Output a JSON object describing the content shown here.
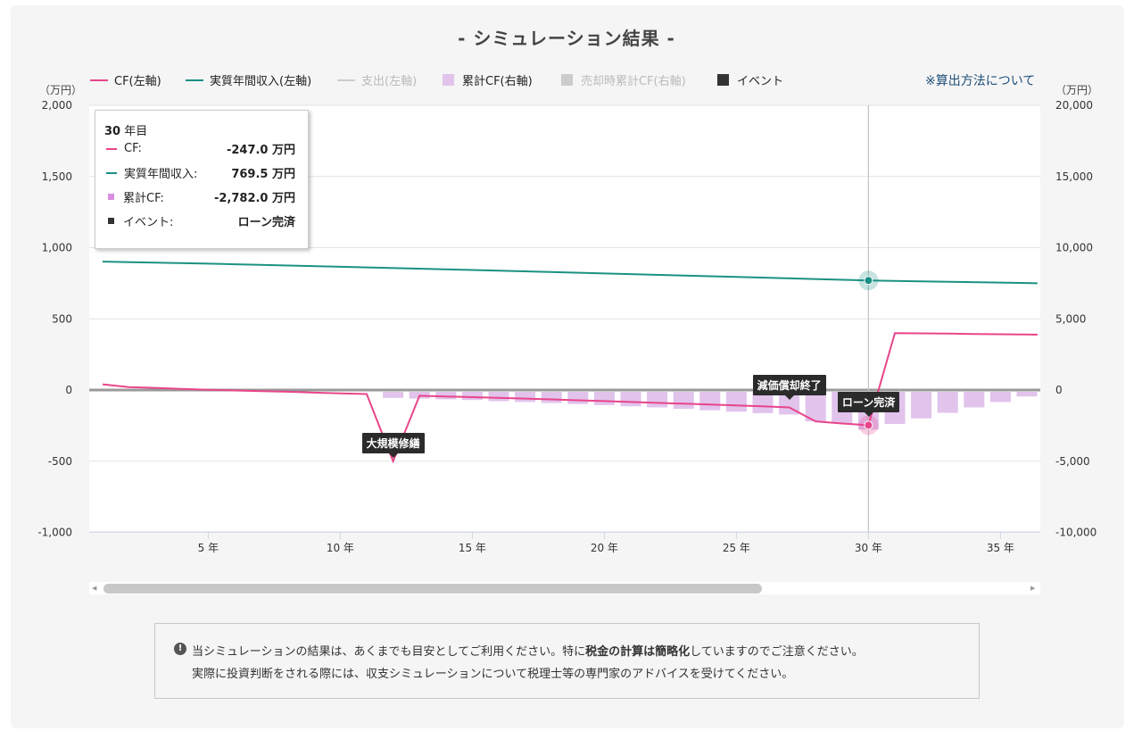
{
  "title": "- シミュレーション結果 -",
  "legend": [
    {
      "label": "CF(左軸)",
      "color": "#e8458b",
      "kind": "line",
      "active": true
    },
    {
      "label": "実質年間収入(左軸)",
      "color": "#1b9183",
      "kind": "line",
      "active": true
    },
    {
      "label": "支出(左軸)",
      "color": "#cccccc",
      "kind": "line",
      "active": false
    },
    {
      "label": "累計CF(右軸)",
      "color": "#e1c3ec",
      "kind": "box",
      "active": true
    },
    {
      "label": "売却時累計CF(右軸)",
      "color": "#cccccc",
      "kind": "box",
      "active": false
    },
    {
      "label": "イベント",
      "color": "#333333",
      "kind": "box",
      "active": true
    }
  ],
  "method_link": "※算出方法について",
  "unit_left": "（万円）",
  "unit_right": "（万円）",
  "tooltip": {
    "title_num": "30",
    "title_suffix": " 年目",
    "rows": [
      {
        "label": "CF:",
        "value": "-247.0 万円",
        "color": "#e8458b",
        "marker": "line"
      },
      {
        "label": "実質年間収入:",
        "value": "769.5 万円",
        "color": "#1b9183",
        "marker": "line"
      },
      {
        "label": "累計CF:",
        "value": "-2,782.0 万円",
        "color": "#d88ee0",
        "marker": "square"
      },
      {
        "label": "イベント:",
        "value": "ローン完済",
        "color": "#333333",
        "marker": "square"
      }
    ]
  },
  "events": [
    {
      "year": 12,
      "label": "大規模修繕"
    },
    {
      "year": 27,
      "label": "減価償却終了"
    },
    {
      "year": 30,
      "label": "ローン完済"
    }
  ],
  "notice": {
    "icon": "exclamation-circle-icon",
    "line1_a": "当シミュレーションの結果は、あくまでも目安としてご利用ください。特に",
    "line1_b": "税金の計算は簡略化",
    "line1_c": "していますのでご注意ください。",
    "line2": "実際に投資判断をされる際には、収支シミュレーションについて税理士等の専門家のアドバイスを受けてください。"
  },
  "chart_data": {
    "type": "line",
    "x_label_suffix": " 年",
    "x_ticks": [
      5,
      10,
      15,
      20,
      25,
      30,
      35
    ],
    "x_range": [
      1,
      36.4
    ],
    "y_left": {
      "range": [
        -1000,
        2000
      ],
      "ticks": [
        -1000,
        -500,
        0,
        500,
        1000,
        1500,
        2000
      ],
      "tick_labels": [
        "-1,000",
        "-500",
        "0",
        "500",
        "1,000",
        "1,500",
        "2,000"
      ]
    },
    "y_right": {
      "range": [
        -10000,
        20000
      ],
      "ticks": [
        -10000,
        -5000,
        0,
        5000,
        10000,
        15000,
        20000
      ],
      "tick_labels": [
        "-10,000",
        "-5,000",
        "0",
        "5,000",
        "10,000",
        "15,000",
        "20,000"
      ]
    },
    "grid": true,
    "crosshair_year": 30,
    "series": [
      {
        "name": "CF(左軸)",
        "axis": "left",
        "color": "#e8458b",
        "type": "line",
        "x": [
          1,
          2,
          3,
          4,
          5,
          6,
          7,
          8,
          9,
          10,
          11,
          12,
          13,
          14,
          15,
          16,
          17,
          18,
          19,
          20,
          21,
          22,
          23,
          24,
          25,
          26,
          27,
          28,
          29,
          30,
          31,
          32,
          33,
          34,
          35,
          36,
          36.4
        ],
        "values": [
          40,
          20,
          15,
          8,
          2,
          -3,
          -8,
          -12,
          -18,
          -24,
          -28,
          -500,
          -40,
          -45,
          -50,
          -55,
          -60,
          -66,
          -72,
          -78,
          -84,
          -90,
          -96,
          -102,
          -108,
          -115,
          -122,
          -220,
          -235,
          -247,
          400,
          398,
          396,
          394,
          392,
          390,
          389
        ]
      },
      {
        "name": "実質年間収入(左軸)",
        "axis": "left",
        "color": "#1b9183",
        "type": "line",
        "x": [
          1,
          5,
          10,
          15,
          20,
          25,
          30,
          35,
          36.4
        ],
        "values": [
          902,
          888,
          866,
          843,
          819,
          795,
          769.5,
          755,
          750
        ]
      },
      {
        "name": "累計CF(右軸)",
        "axis": "right",
        "color": "#e1c3ec",
        "type": "bar",
        "x": [
          12,
          13,
          14,
          15,
          16,
          17,
          18,
          19,
          20,
          21,
          22,
          23,
          24,
          25,
          26,
          27,
          28,
          29,
          30,
          31,
          32,
          33,
          34,
          35,
          36
        ],
        "values": [
          -550,
          -600,
          -650,
          -700,
          -780,
          -840,
          -910,
          -980,
          -1060,
          -1140,
          -1220,
          -1320,
          -1420,
          -1520,
          -1620,
          -1720,
          -2200,
          -2350,
          -2782,
          -2380,
          -1990,
          -1600,
          -1220,
          -840,
          -450
        ]
      }
    ]
  }
}
